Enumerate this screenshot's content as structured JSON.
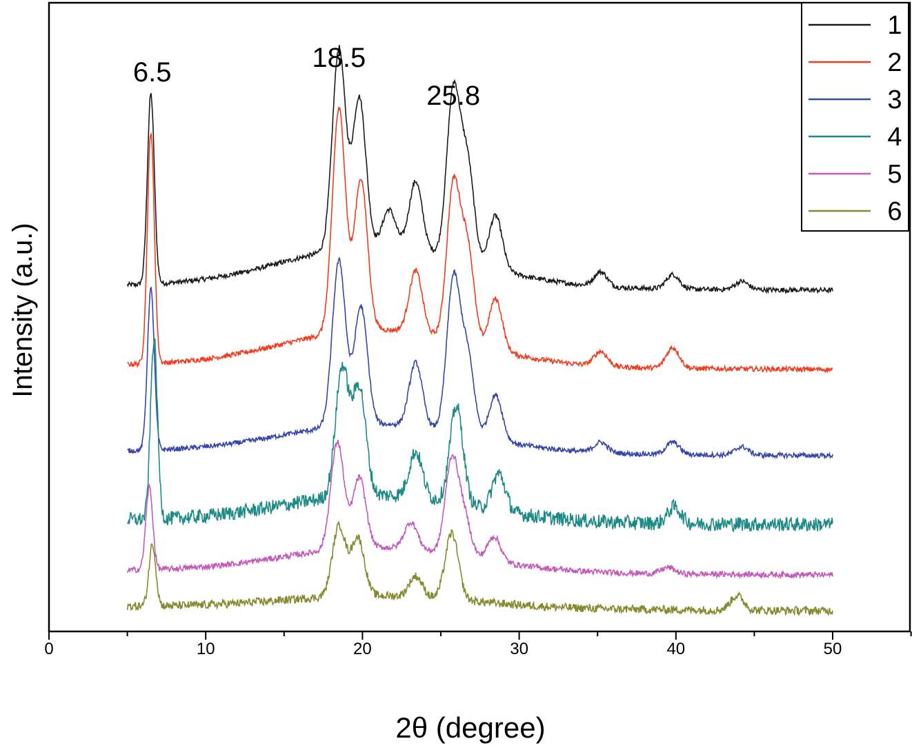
{
  "chart_data": {
    "type": "line",
    "title": "",
    "xlabel": "2θ (degree)",
    "ylabel": "Intensity (a.u.)",
    "xlim": [
      0,
      55
    ],
    "x_ticks": [
      0,
      10,
      20,
      30,
      40,
      50
    ],
    "x_tick_labels": [
      "0",
      "10",
      "20",
      "30",
      "40",
      "50"
    ],
    "y_ticks_shown": false,
    "grid": false,
    "legend_position": "top-right",
    "annotations": [
      {
        "text": "6.5",
        "x": 6.5
      },
      {
        "text": "18.5",
        "x": 18.5
      },
      {
        "text": "25.8",
        "x": 25.8
      }
    ],
    "series": [
      {
        "name": "1",
        "color": "#1a1a1a",
        "baseline": 0.2,
        "peaks": [
          {
            "x": 6.5,
            "height": 0.92
          },
          {
            "x": 18.5,
            "height": 0.97
          },
          {
            "x": 19.8,
            "height": 0.72
          },
          {
            "x": 21.7,
            "height": 0.18
          },
          {
            "x": 23.4,
            "height": 0.33
          },
          {
            "x": 25.8,
            "height": 0.8
          },
          {
            "x": 26.7,
            "height": 0.47
          },
          {
            "x": 28.5,
            "height": 0.26
          },
          {
            "x": 35.2,
            "height": 0.07
          },
          {
            "x": 39.8,
            "height": 0.07
          },
          {
            "x": 44.2,
            "height": 0.04
          }
        ]
      },
      {
        "name": "2",
        "color": "#f03c1e",
        "baseline": 0.18,
        "peaks": [
          {
            "x": 6.5,
            "height": 1.12
          },
          {
            "x": 18.5,
            "height": 1.08
          },
          {
            "x": 19.9,
            "height": 0.73
          },
          {
            "x": 23.4,
            "height": 0.3
          },
          {
            "x": 25.8,
            "height": 0.74
          },
          {
            "x": 26.7,
            "height": 0.46
          },
          {
            "x": 28.5,
            "height": 0.25
          },
          {
            "x": 35.2,
            "height": 0.07
          },
          {
            "x": 39.8,
            "height": 0.1
          }
        ]
      },
      {
        "name": "3",
        "color": "#3545a8",
        "baseline": 0.14,
        "peaks": [
          {
            "x": 6.5,
            "height": 0.78
          },
          {
            "x": 18.5,
            "height": 0.8
          },
          {
            "x": 19.9,
            "height": 0.57
          },
          {
            "x": 23.4,
            "height": 0.31
          },
          {
            "x": 25.8,
            "height": 0.73
          },
          {
            "x": 26.7,
            "height": 0.38
          },
          {
            "x": 28.5,
            "height": 0.22
          },
          {
            "x": 35.2,
            "height": 0.05
          },
          {
            "x": 39.8,
            "height": 0.06
          },
          {
            "x": 44.2,
            "height": 0.04
          }
        ]
      },
      {
        "name": "4",
        "color": "#1d8a86",
        "baseline": 0.13,
        "peaks": [
          {
            "x": 6.7,
            "height": 0.87
          },
          {
            "x": 18.7,
            "height": 0.62
          },
          {
            "x": 19.8,
            "height": 0.52
          },
          {
            "x": 23.4,
            "height": 0.22
          },
          {
            "x": 26.0,
            "height": 0.47
          },
          {
            "x": 28.7,
            "height": 0.18
          },
          {
            "x": 39.9,
            "height": 0.08
          }
        ]
      },
      {
        "name": "5",
        "color": "#c25ab8",
        "baseline": 0.12,
        "peaks": [
          {
            "x": 6.4,
            "height": 0.4
          },
          {
            "x": 18.4,
            "height": 0.52
          },
          {
            "x": 19.8,
            "height": 0.34
          },
          {
            "x": 23.1,
            "height": 0.13
          },
          {
            "x": 25.7,
            "height": 0.45
          },
          {
            "x": 26.5,
            "height": 0.18
          },
          {
            "x": 28.4,
            "height": 0.12
          },
          {
            "x": 39.5,
            "height": 0.03
          }
        ]
      },
      {
        "name": "6",
        "color": "#858a2e",
        "baseline": 0.06,
        "peaks": [
          {
            "x": 6.6,
            "height": 0.3
          },
          {
            "x": 18.5,
            "height": 0.34
          },
          {
            "x": 19.7,
            "height": 0.28
          },
          {
            "x": 23.4,
            "height": 0.1
          },
          {
            "x": 25.7,
            "height": 0.32
          },
          {
            "x": 43.9,
            "height": 0.07
          }
        ]
      }
    ]
  }
}
